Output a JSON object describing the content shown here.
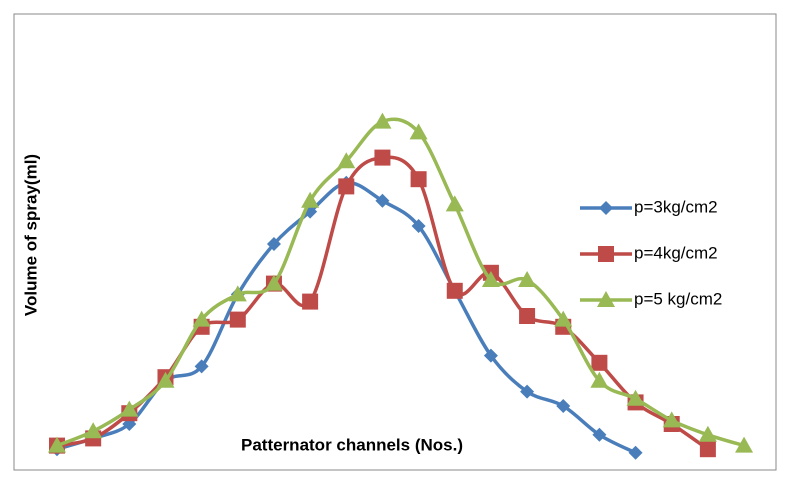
{
  "chart_data": {
    "type": "line",
    "x_label": "Patternator channels (Nos.)",
    "y_label": "Volume of spray(ml)",
    "categories": [
      null,
      null,
      null,
      null,
      null,
      null,
      null,
      null,
      null,
      null,
      null,
      null,
      null,
      null,
      null,
      null,
      null,
      null,
      null,
      null
    ],
    "series": [
      {
        "name": "p=3kg/cm2",
        "color": "#4a7ebb",
        "marker": "diamond",
        "values": [
          3,
          6,
          10,
          22,
          26,
          46,
          60,
          69,
          77,
          72,
          65,
          47,
          29,
          19,
          15,
          7,
          2,
          null,
          null,
          null
        ]
      },
      {
        "name": "p=4kg/cm2",
        "color": "#be4b48",
        "marker": "square",
        "values": [
          4,
          6,
          13,
          23,
          37,
          39,
          49,
          44,
          76,
          84,
          78,
          47,
          52,
          40,
          37,
          27,
          16,
          10,
          3,
          null
        ]
      },
      {
        "name": "p=5 kg/cm2",
        "color": "#98b954",
        "marker": "triangle",
        "values": [
          4,
          8,
          14,
          22,
          39,
          46,
          49,
          72,
          83,
          94,
          91,
          71,
          50,
          50,
          39,
          22,
          17,
          11,
          7,
          4
        ]
      }
    ],
    "ylim": [
      0,
      100
    ]
  }
}
